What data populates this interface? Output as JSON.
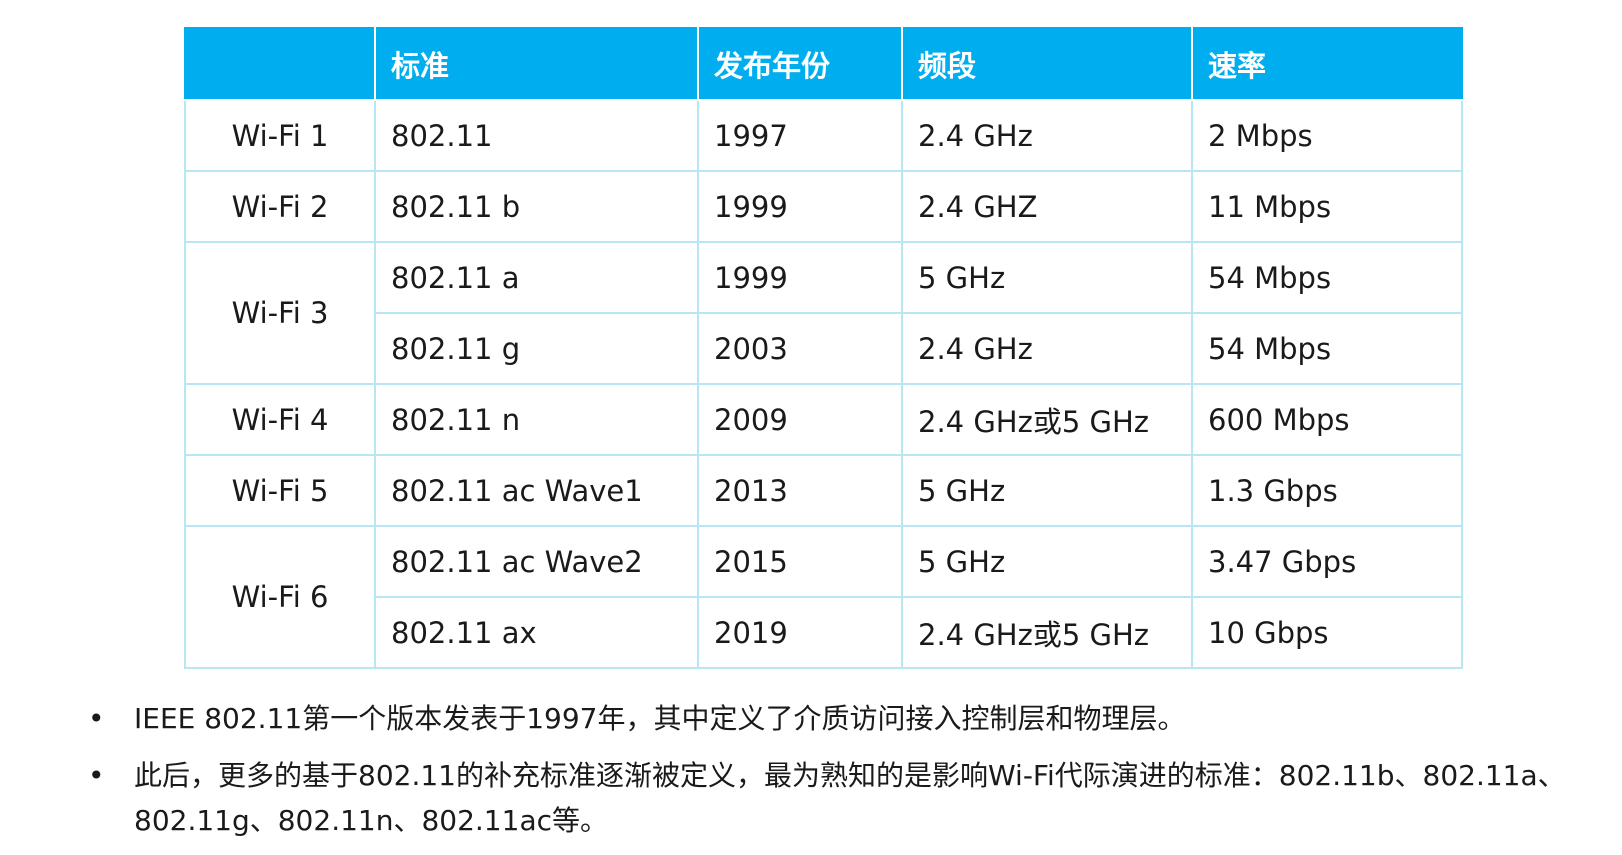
{
  "table": {
    "headers": [
      "",
      "标准",
      "发布年份",
      "频段",
      "速率"
    ],
    "rows": [
      {
        "generation": "Wi-Fi 1",
        "standard": "802.11",
        "year": "1997",
        "band": "2.4 GHz",
        "rate": "2 Mbps"
      },
      {
        "generation": "Wi-Fi 2",
        "standard": "802.11 b",
        "year": "1999",
        "band": "2.4 GHZ",
        "rate": "11 Mbps"
      },
      {
        "generation": "Wi-Fi 3",
        "standard": "802.11 a",
        "year": "1999",
        "band": "5 GHz",
        "rate": "54 Mbps"
      },
      {
        "generation": "Wi-Fi 3",
        "standard": "802.11 g",
        "year": "2003",
        "band": "2.4 GHz",
        "rate": "54 Mbps"
      },
      {
        "generation": "Wi-Fi 4",
        "standard": "802.11 n",
        "year": "2009",
        "band": "2.4 GHz或5 GHz",
        "rate": "600 Mbps"
      },
      {
        "generation": "Wi-Fi 5",
        "standard": "802.11 ac Wave1",
        "year": "2013",
        "band": "5 GHz",
        "rate": "1.3 Gbps"
      },
      {
        "generation": "Wi-Fi 6",
        "standard": "802.11 ac Wave2",
        "year": "2015",
        "band": "5 GHz",
        "rate": "3.47 Gbps"
      },
      {
        "generation": "Wi-Fi 6",
        "standard": "802.11 ax",
        "year": "2019",
        "band": "2.4 GHz或5 GHz",
        "rate": "10 Gbps"
      }
    ]
  },
  "bullets": [
    "IEEE 802.11第一个版本发表于1997年，其中定义了介质访问接入控制层和物理层。",
    "此后，更多的基于802.11的补充标准逐渐被定义，最为熟知的是影响Wi-Fi代际演进的标准：802.11b、802.11a、802.11g、802.11n、802.11ac等。"
  ],
  "bullet_marker": "•",
  "colors": {
    "header_bg": "#00aeef",
    "header_text": "#ffffff",
    "grid_line": "#b9e6f5"
  }
}
